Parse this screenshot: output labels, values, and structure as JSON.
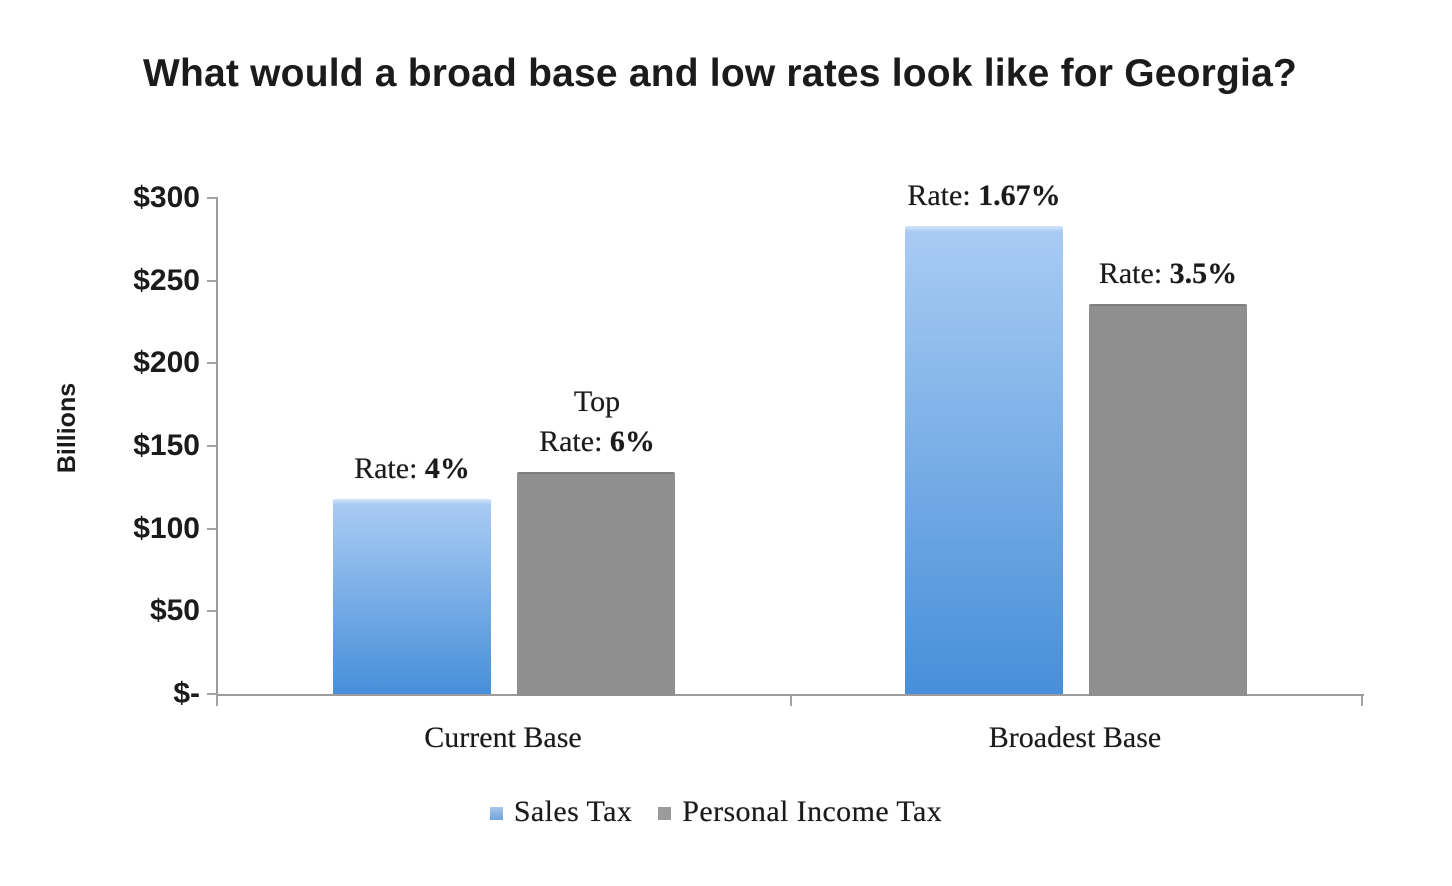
{
  "title": "What would a broad base and low rates look like for Georgia?",
  "chart_data": {
    "type": "bar",
    "title": "What would a broad base and low rates look like for Georgia?",
    "ylabel": "Billions",
    "xlabel": "",
    "unit": "USD billions",
    "ylim": [
      0,
      300
    ],
    "y_tick_labels": [
      "$300",
      "$250",
      "$200",
      "$150",
      "$100",
      "$50",
      "$-"
    ],
    "grid": false,
    "legend_position": "bottom",
    "categories": [
      "Current Base",
      "Broadest Base"
    ],
    "series": [
      {
        "name": "Sales Tax",
        "values": [
          118,
          283
        ],
        "color_top": "#a8cbf3",
        "color_bottom": "#478fd9"
      },
      {
        "name": "Personal Income Tax",
        "values": [
          134,
          236
        ],
        "color": "#8f8f8f"
      }
    ],
    "bar_labels": [
      {
        "category": "Current Base",
        "series": "Sales Tax",
        "prefix": "Rate: ",
        "value": "4%"
      },
      {
        "category": "Current Base",
        "series": "Personal Income Tax",
        "line1": "Top",
        "prefix": "Rate: ",
        "value": "6%"
      },
      {
        "category": "Broadest Base",
        "series": "Sales Tax",
        "prefix": "Rate: ",
        "value": "1.67%"
      },
      {
        "category": "Broadest Base",
        "series": "Personal Income Tax",
        "prefix": "Rate: ",
        "value": "3.5%"
      }
    ]
  },
  "colors": {
    "sales_tax_top": "#a8cbf3",
    "sales_tax_bottom": "#478fd9",
    "personal_income_tax": "#8f8f8f",
    "axis": "#9c9c9c",
    "text": "#1b1b1b",
    "background": "#ffffff"
  }
}
